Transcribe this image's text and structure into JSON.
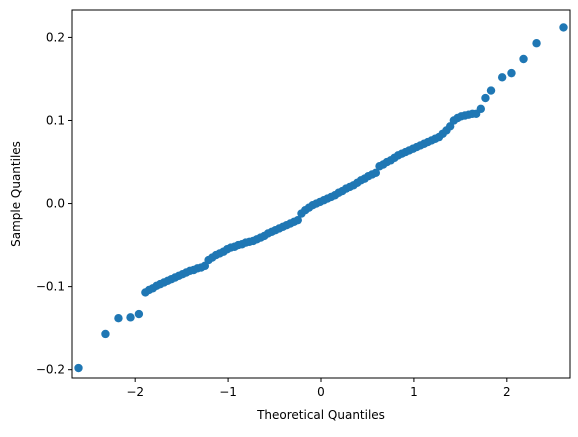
{
  "chart_data": {
    "type": "scatter",
    "title": "",
    "xlabel": "Theoretical Quantiles",
    "ylabel": "Sample Quantiles",
    "xlim": [
      -2.68,
      2.68
    ],
    "ylim": [
      -0.21,
      0.233
    ],
    "xticks": [
      -2,
      -1,
      0,
      1,
      2
    ],
    "xtick_labels": [
      "−2",
      "−1",
      "0",
      "1",
      "2"
    ],
    "yticks": [
      -0.2,
      -0.1,
      0.0,
      0.1,
      0.2
    ],
    "ytick_labels": [
      "−0.2",
      "−0.1",
      "0.0",
      "0.1",
      "0.2"
    ],
    "grid": false,
    "marker_color": "#1f77b4",
    "series": [
      {
        "name": "",
        "points": [
          [
            -2.61,
            -0.198
          ],
          [
            -2.32,
            -0.157
          ],
          [
            -2.18,
            -0.138
          ],
          [
            -2.05,
            -0.137
          ],
          [
            -1.96,
            -0.133
          ],
          [
            -1.89,
            -0.107
          ],
          [
            -1.85,
            -0.104
          ],
          [
            -1.81,
            -0.102
          ],
          [
            -1.77,
            -0.099
          ],
          [
            -1.73,
            -0.097
          ],
          [
            -1.69,
            -0.095
          ],
          [
            -1.65,
            -0.093
          ],
          [
            -1.61,
            -0.091
          ],
          [
            -1.57,
            -0.089
          ],
          [
            -1.53,
            -0.087
          ],
          [
            -1.49,
            -0.085
          ],
          [
            -1.45,
            -0.083
          ],
          [
            -1.41,
            -0.081
          ],
          [
            -1.37,
            -0.08
          ],
          [
            -1.33,
            -0.078
          ],
          [
            -1.29,
            -0.077
          ],
          [
            -1.25,
            -0.075
          ],
          [
            -1.21,
            -0.068
          ],
          [
            -1.17,
            -0.065
          ],
          [
            -1.13,
            -0.062
          ],
          [
            -1.09,
            -0.06
          ],
          [
            -1.05,
            -0.058
          ],
          [
            -1.01,
            -0.055
          ],
          [
            -0.97,
            -0.053
          ],
          [
            -0.93,
            -0.052
          ],
          [
            -0.89,
            -0.05
          ],
          [
            -0.85,
            -0.049
          ],
          [
            -0.81,
            -0.047
          ],
          [
            -0.77,
            -0.046
          ],
          [
            -0.73,
            -0.045
          ],
          [
            -0.69,
            -0.043
          ],
          [
            -0.65,
            -0.041
          ],
          [
            -0.61,
            -0.039
          ],
          [
            -0.57,
            -0.036
          ],
          [
            -0.53,
            -0.034
          ],
          [
            -0.49,
            -0.032
          ],
          [
            -0.45,
            -0.03
          ],
          [
            -0.41,
            -0.028
          ],
          [
            -0.37,
            -0.026
          ],
          [
            -0.33,
            -0.024
          ],
          [
            -0.29,
            -0.022
          ],
          [
            -0.25,
            -0.02
          ],
          [
            -0.21,
            -0.012
          ],
          [
            -0.17,
            -0.008
          ],
          [
            -0.13,
            -0.005
          ],
          [
            -0.09,
            -0.002
          ],
          [
            -0.05,
            0.0
          ],
          [
            -0.01,
            0.002
          ],
          [
            0.03,
            0.004
          ],
          [
            0.07,
            0.006
          ],
          [
            0.11,
            0.008
          ],
          [
            0.15,
            0.01
          ],
          [
            0.19,
            0.013
          ],
          [
            0.23,
            0.015
          ],
          [
            0.27,
            0.018
          ],
          [
            0.31,
            0.02
          ],
          [
            0.35,
            0.022
          ],
          [
            0.39,
            0.025
          ],
          [
            0.43,
            0.028
          ],
          [
            0.47,
            0.03
          ],
          [
            0.51,
            0.033
          ],
          [
            0.55,
            0.035
          ],
          [
            0.59,
            0.037
          ],
          [
            0.63,
            0.045
          ],
          [
            0.67,
            0.047
          ],
          [
            0.71,
            0.05
          ],
          [
            0.75,
            0.052
          ],
          [
            0.79,
            0.055
          ],
          [
            0.83,
            0.058
          ],
          [
            0.87,
            0.06
          ],
          [
            0.91,
            0.062
          ],
          [
            0.95,
            0.064
          ],
          [
            0.99,
            0.066
          ],
          [
            1.03,
            0.068
          ],
          [
            1.07,
            0.07
          ],
          [
            1.11,
            0.072
          ],
          [
            1.15,
            0.074
          ],
          [
            1.19,
            0.076
          ],
          [
            1.23,
            0.078
          ],
          [
            1.27,
            0.08
          ],
          [
            1.31,
            0.084
          ],
          [
            1.35,
            0.088
          ],
          [
            1.39,
            0.093
          ],
          [
            1.43,
            0.1
          ],
          [
            1.47,
            0.103
          ],
          [
            1.51,
            0.105
          ],
          [
            1.55,
            0.106
          ],
          [
            1.59,
            0.107
          ],
          [
            1.63,
            0.108
          ],
          [
            1.67,
            0.108
          ],
          [
            1.72,
            0.114
          ],
          [
            1.77,
            0.127
          ],
          [
            1.83,
            0.136
          ],
          [
            1.95,
            0.152
          ],
          [
            2.05,
            0.157
          ],
          [
            2.18,
            0.174
          ],
          [
            2.32,
            0.193
          ],
          [
            2.61,
            0.212
          ]
        ]
      }
    ]
  }
}
